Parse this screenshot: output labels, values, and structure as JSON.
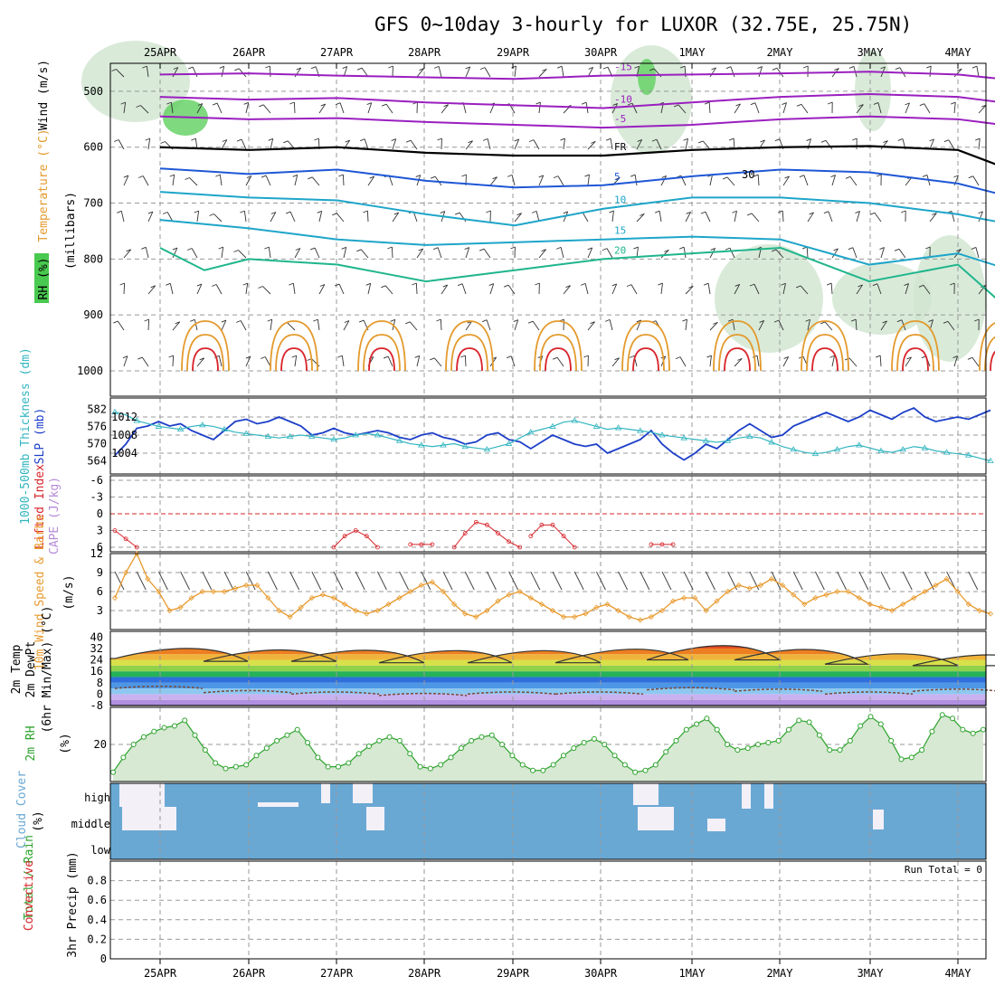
{
  "title": "GFS 0~10day 3-hourly for LUXOR (32.75E, 25.75N)",
  "colors": {
    "purple": "#9a1fbf",
    "blue": "#1e57d6",
    "cyan": "#1ea5c9",
    "teal": "#1fb58c",
    "orange": "#e39a2c",
    "red": "#d8242b",
    "rh_green": "#49c94f",
    "cape": "#b58ad8",
    "slp": "#1d3fc9",
    "thick": "#32b5c0",
    "wind": "#e89a2e",
    "rh2m": "#2ca32c",
    "cloud": "#6aa8d4",
    "precip_total": "#2ca32c",
    "precip_conv": "#d8242b"
  },
  "chart_data": [
    {
      "type": "heatmap",
      "name": "upper_air_cross_section",
      "ylabels": [
        "Temperature (°C)",
        "Wind (m/s)",
        "(millibars)",
        "RH (%)"
      ],
      "yticks": [
        500,
        600,
        700,
        800,
        900,
        1000
      ],
      "ylim": [
        450,
        1000
      ],
      "xticks_top": [
        "25APR",
        "26APR",
        "27APR",
        "28APR",
        "29APR",
        "30APR",
        "1MAY",
        "2MAY",
        "3MAY",
        "4MAY"
      ],
      "isotherms": [
        {
          "label": "-15",
          "color": "#9a1fbf",
          "x": [
            0,
            1,
            2,
            3,
            4,
            5,
            6,
            7,
            8,
            9,
            9.5
          ],
          "y": [
            470,
            468,
            472,
            475,
            478,
            472,
            470,
            468,
            465,
            470,
            478
          ]
        },
        {
          "label": "-10",
          "color": "#9a1fbf",
          "x": [
            0,
            1,
            2,
            3,
            4,
            5,
            6,
            7,
            8,
            9,
            9.5
          ],
          "y": [
            510,
            515,
            512,
            520,
            525,
            530,
            520,
            510,
            505,
            510,
            520
          ]
        },
        {
          "label": "-5",
          "color": "#9a1fbf",
          "x": [
            0,
            1,
            2,
            3,
            4,
            5,
            6,
            7,
            8,
            9,
            9.5
          ],
          "y": [
            545,
            550,
            548,
            555,
            560,
            565,
            560,
            550,
            545,
            550,
            560
          ]
        },
        {
          "label": "FR",
          "color": "#000000",
          "x": [
            0,
            1,
            2,
            3,
            4,
            5,
            6,
            7,
            8,
            9,
            9.5
          ],
          "y": [
            600,
            605,
            600,
            610,
            615,
            615,
            605,
            600,
            598,
            605,
            635
          ]
        },
        {
          "label": "5",
          "color": "#1e57d6",
          "x": [
            0,
            1,
            2,
            3,
            4,
            5,
            6,
            7,
            8,
            9,
            9.5
          ],
          "y": [
            638,
            648,
            640,
            660,
            672,
            668,
            652,
            640,
            645,
            665,
            685
          ]
        },
        {
          "label": "10",
          "color": "#1ea5c9",
          "x": [
            0,
            1,
            2,
            3,
            4,
            5,
            6,
            7,
            8,
            9,
            9.5
          ],
          "y": [
            680,
            690,
            695,
            720,
            740,
            710,
            690,
            690,
            700,
            720,
            735
          ]
        },
        {
          "label": "15",
          "color": "#1ea5c9",
          "x": [
            0,
            1,
            2,
            3,
            4,
            5,
            6,
            7,
            8,
            9,
            9.5
          ],
          "y": [
            730,
            745,
            765,
            775,
            770,
            765,
            760,
            765,
            810,
            790,
            815
          ]
        },
        {
          "label": "20",
          "color": "#1fb58c",
          "x": [
            0,
            0.5,
            1,
            2,
            3,
            4,
            5,
            6,
            7,
            8,
            9,
            9.5
          ],
          "y": [
            780,
            820,
            800,
            810,
            840,
            820,
            800,
            790,
            780,
            840,
            810,
            880
          ]
        }
      ],
      "rh_label": "30"
    },
    {
      "type": "line",
      "name": "slp_thickness",
      "ylabels": [
        "1000-500mb Thickness (dm)",
        "SLP (mb)"
      ],
      "y_left_ticks": [
        564,
        570,
        576,
        582
      ],
      "y_right_ticks": [
        1004,
        1008,
        1012
      ],
      "series": [
        {
          "name": "SLP",
          "axis": "right",
          "values": [
            1003.5,
            1006,
            1009.5,
            1010,
            1011,
            1010,
            1010.5,
            1009,
            1008,
            1007,
            1009,
            1011,
            1011.5,
            1010.5,
            1011,
            1012,
            1011,
            1010,
            1008,
            1008.5,
            1009.5,
            1008.5,
            1008,
            1008.5,
            1009,
            1008.5,
            1007.5,
            1007,
            1008,
            1008.5,
            1007.5,
            1007,
            1006,
            1006.5,
            1008,
            1008.5,
            1007,
            1006.5,
            1005,
            1006.5,
            1008,
            1007,
            1006,
            1005.5,
            1006,
            1004,
            1005,
            1006,
            1007,
            1009,
            1006,
            1004,
            1002.5,
            1004,
            1006,
            1005,
            1007,
            1009,
            1010.5,
            1009,
            1007.5,
            1008,
            1010,
            1011,
            1012,
            1013,
            1012,
            1011,
            1012,
            1013.5,
            1012.5,
            1011.5,
            1013,
            1014,
            1012,
            1011,
            1011.5,
            1012,
            1011.5,
            1012.5,
            1013.5
          ]
        },
        {
          "name": "Thickness",
          "axis": "left",
          "values": [
            581,
            580,
            578,
            577,
            576,
            575.5,
            575,
            576,
            576.5,
            576,
            575,
            574,
            573.5,
            573,
            572.5,
            572,
            572.5,
            573,
            572.5,
            572,
            571.5,
            572,
            573,
            573.5,
            573,
            572,
            571,
            570,
            569.5,
            569,
            569.5,
            570,
            569,
            568.5,
            568,
            569,
            570,
            572,
            574,
            575,
            576,
            577.5,
            578,
            577,
            576,
            575,
            575.5,
            575,
            574.5,
            574,
            573,
            572.5,
            572,
            571.5,
            571,
            570.5,
            571,
            572,
            572.5,
            572,
            570.5,
            569,
            568,
            567,
            566.5,
            567,
            568,
            569,
            569.5,
            568.5,
            567.5,
            567,
            568,
            569,
            568.5,
            567.5,
            567,
            566.5,
            566,
            565,
            564
          ]
        }
      ]
    },
    {
      "type": "line",
      "name": "lifted_index_cape",
      "ylabels": [
        "Lifted Index",
        "CAPE (J/kg)"
      ],
      "yticks": [
        -6,
        -3,
        0,
        3,
        6
      ],
      "ylim": [
        6,
        -6
      ],
      "series": [
        {
          "name": "Lifted Index",
          "segments": [
            {
              "x0": 0,
              "values": [
                3,
                4.5,
                6
              ]
            },
            {
              "x0": 20,
              "values": [
                6,
                4,
                3,
                4,
                6
              ]
            },
            {
              "x0": 27,
              "values": [
                5.5,
                5.5,
                5.5
              ]
            },
            {
              "x0": 31,
              "values": [
                6,
                3.5,
                1.5,
                2,
                3.5,
                5,
                6
              ]
            },
            {
              "x0": 38,
              "values": [
                4,
                2,
                2,
                4,
                6
              ]
            },
            {
              "x0": 49,
              "values": [
                5.5,
                5.5,
                5.5
              ]
            }
          ]
        }
      ],
      "zero_line": true
    },
    {
      "type": "line",
      "name": "wind_10m",
      "ylabels": [
        "10m Wind Speed & Barbs",
        "(m/s)"
      ],
      "yticks": [
        3,
        6,
        9,
        12
      ],
      "ylim": [
        0,
        12
      ],
      "series": [
        {
          "name": "10m Wind Speed",
          "values": [
            5,
            9,
            12,
            8,
            6,
            3,
            3.5,
            5,
            6,
            6,
            6,
            6.5,
            7,
            7,
            5,
            3,
            2,
            3.5,
            5,
            5.5,
            5,
            4,
            3,
            2.5,
            3,
            4,
            5,
            6,
            7,
            7.5,
            6,
            4,
            2.5,
            2,
            3,
            4.5,
            5.5,
            6,
            5,
            4,
            3,
            2,
            2,
            2.5,
            3.5,
            4,
            3,
            2,
            1.5,
            2,
            3,
            4.5,
            5,
            5,
            3,
            4.5,
            6,
            7,
            6.5,
            7,
            8,
            7,
            5.5,
            4,
            5,
            5.5,
            6,
            6,
            5,
            4,
            3.5,
            3,
            4,
            5,
            6,
            7,
            8,
            6,
            4,
            3,
            2.5
          ]
        }
      ]
    },
    {
      "type": "area",
      "name": "temp_2m",
      "ylabels": [
        "2m Temp",
        "2m DewPt",
        "(6hr Min/Max) (°C)"
      ],
      "yticks": [
        -8,
        0,
        8,
        16,
        24,
        32,
        40
      ],
      "ylim": [
        -8,
        44
      ],
      "bands": [
        {
          "from": -8,
          "to": -4,
          "color": "#b08fe0"
        },
        {
          "from": -4,
          "to": 0,
          "color": "#c9b2ef"
        },
        {
          "from": 0,
          "to": 4,
          "color": "#8ec8f0"
        },
        {
          "from": 4,
          "to": 8,
          "color": "#4d97e6"
        },
        {
          "from": 8,
          "to": 12,
          "color": "#2f6fdc"
        },
        {
          "from": 12,
          "to": 16,
          "color": "#25b25a"
        },
        {
          "from": 16,
          "to": 20,
          "color": "#8fd14a"
        },
        {
          "from": 20,
          "to": 24,
          "color": "#d8e04a"
        },
        {
          "from": 24,
          "to": 28,
          "color": "#f0b43a"
        },
        {
          "from": 28,
          "to": 32,
          "color": "#ec7f22"
        },
        {
          "from": 32,
          "to": 36,
          "color": "#e2471d"
        },
        {
          "from": 36,
          "to": 40,
          "color": "#b8211b"
        },
        {
          "from": 40,
          "to": 44,
          "color": "#7a1010"
        }
      ],
      "days_peak": [
        36,
        35,
        35,
        35,
        35,
        36,
        40,
        36,
        32,
        31
      ],
      "days_trough": [
        25,
        23,
        23,
        22,
        22,
        22,
        24,
        24,
        21,
        20
      ],
      "dewpoint": [
        4,
        1,
        0,
        -1,
        0,
        0,
        3,
        2,
        0,
        2
      ]
    },
    {
      "type": "area",
      "name": "rh_2m",
      "ylabels": [
        "2m RH",
        "(%)"
      ],
      "yticks": [
        20
      ],
      "ylim": [
        0,
        40
      ],
      "series": [
        {
          "name": "2m RH",
          "values": [
            5,
            13,
            20,
            24,
            27,
            29,
            30,
            33,
            25,
            17,
            10,
            7,
            8,
            9,
            14,
            18,
            22,
            25,
            28,
            21,
            13,
            8,
            8,
            10,
            15,
            19,
            22,
            24,
            22,
            15,
            8,
            7,
            9,
            13,
            18,
            22,
            24,
            25,
            20,
            14,
            9,
            6,
            6,
            9,
            14,
            18,
            21,
            23,
            20,
            14,
            9,
            5,
            6,
            9,
            16,
            22,
            28,
            31,
            34,
            28,
            20,
            17,
            18,
            20,
            21,
            22,
            28,
            33,
            32,
            25,
            17,
            17,
            22,
            30,
            35,
            31,
            22,
            12,
            13,
            17,
            27,
            36,
            34,
            28,
            26,
            28
          ]
        }
      ]
    },
    {
      "type": "bar",
      "name": "cloud_cover",
      "ylabels": [
        "Cloud Cover",
        "(%)"
      ],
      "categories": [
        "high",
        "middle",
        "low"
      ]
    },
    {
      "type": "bar",
      "name": "precip",
      "ylabels": [
        "Total / Rain",
        "Convective",
        "3hr Precip (mm)"
      ],
      "yticks": [
        0,
        0.2,
        0.4,
        0.6,
        0.8
      ],
      "ylim": [
        0,
        1
      ],
      "run_total_label": "Run Total = 0",
      "series": [
        {
          "name": "Total / Rain",
          "values": []
        }
      ],
      "xticks_bottom": [
        "25APR",
        "26APR",
        "27APR",
        "28APR",
        "29APR",
        "30APR",
        "1MAY",
        "2MAY",
        "3MAY",
        "4MAY"
      ]
    }
  ]
}
